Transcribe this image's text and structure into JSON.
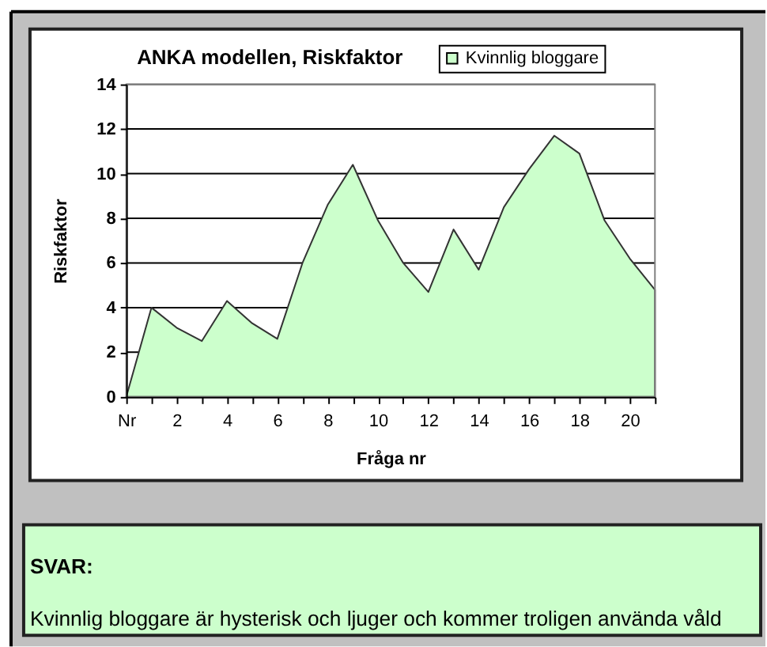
{
  "chart_data": {
    "type": "area",
    "title": "ANKA modellen, Riskfaktor",
    "xlabel": "Fråga nr",
    "ylabel": "Riskfaktor",
    "categories": [
      "Nr",
      null,
      "2",
      null,
      "4",
      null,
      "6",
      null,
      "8",
      null,
      "10",
      null,
      "12",
      null,
      "14",
      null,
      "16",
      null,
      "18",
      null,
      "20",
      null
    ],
    "series": [
      {
        "name": "Kvinnlig bloggare",
        "color": "#ccffcc",
        "values": [
          0,
          4.0,
          3.1,
          2.5,
          4.3,
          3.3,
          2.6,
          6.0,
          8.6,
          10.4,
          7.9,
          6.0,
          4.7,
          7.5,
          5.7,
          8.5,
          10.2,
          11.7,
          10.9,
          7.9,
          6.2,
          4.8
        ]
      }
    ],
    "ylim": [
      0,
      14
    ],
    "yticks": [
      0,
      2,
      4,
      6,
      8,
      10,
      12,
      14
    ],
    "grid": "y",
    "legend": "top",
    "annotations": [
      "SVAR:",
      "Kvinnlig bloggare är hysterisk och ljuger och kommer troligen använda våld"
    ]
  }
}
